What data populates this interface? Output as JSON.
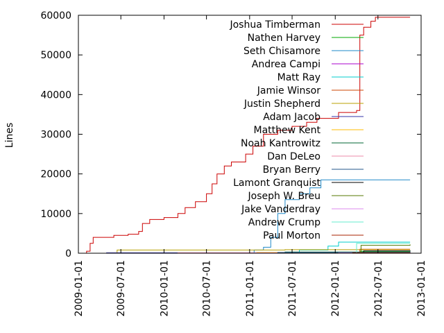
{
  "chart_data": {
    "type": "line",
    "title": "",
    "xlabel": "",
    "ylabel": "Lines",
    "xlim": [
      "2009-01-01",
      "2013-01-01"
    ],
    "ylim": [
      0,
      60000
    ],
    "x_ticks": [
      "2009-01-01",
      "2009-07-01",
      "2010-01-01",
      "2010-07-01",
      "2011-01-01",
      "2011-07-01",
      "2012-01-01",
      "2012-07-01",
      "2013-01-01"
    ],
    "y_ticks": [
      0,
      10000,
      20000,
      30000,
      40000,
      50000,
      60000
    ],
    "legend": "top-right",
    "series": [
      {
        "name": "Joshua Timberman",
        "color": "#cc0000",
        "step": true,
        "points": [
          [
            "2009-01-15",
            0
          ],
          [
            "2009-02-05",
            500
          ],
          [
            "2009-02-20",
            2500
          ],
          [
            "2009-03-05",
            4000
          ],
          [
            "2009-06-01",
            4500
          ],
          [
            "2009-08-01",
            4800
          ],
          [
            "2009-09-15",
            5500
          ],
          [
            "2009-10-01",
            7500
          ],
          [
            "2009-11-01",
            8500
          ],
          [
            "2010-01-01",
            9000
          ],
          [
            "2010-03-01",
            10000
          ],
          [
            "2010-04-01",
            11500
          ],
          [
            "2010-05-15",
            13000
          ],
          [
            "2010-07-01",
            15000
          ],
          [
            "2010-07-25",
            17500
          ],
          [
            "2010-08-15",
            20000
          ],
          [
            "2010-09-15",
            22000
          ],
          [
            "2010-10-15",
            23000
          ],
          [
            "2010-12-15",
            25000
          ],
          [
            "2011-01-15",
            27000
          ],
          [
            "2011-03-01",
            30000
          ],
          [
            "2011-05-01",
            31000
          ],
          [
            "2011-07-01",
            32000
          ],
          [
            "2011-09-01",
            33000
          ],
          [
            "2011-10-15",
            34000
          ],
          [
            "2012-01-15",
            35500
          ],
          [
            "2012-04-01",
            36000
          ],
          [
            "2012-04-15",
            55000
          ],
          [
            "2012-05-01",
            57000
          ],
          [
            "2012-06-01",
            58500
          ],
          [
            "2012-06-20",
            59500
          ],
          [
            "2012-11-15",
            59500
          ]
        ]
      },
      {
        "name": "Nathen Harvey",
        "color": "#00aa00",
        "step": true,
        "points": [
          [
            "2012-04-01",
            0
          ],
          [
            "2012-04-15",
            500
          ],
          [
            "2012-11-15",
            600
          ]
        ]
      },
      {
        "name": "Seth Chisamore",
        "color": "#1e88c8",
        "step": true,
        "points": [
          [
            "2011-01-01",
            0
          ],
          [
            "2011-01-20",
            800
          ],
          [
            "2011-03-01",
            1500
          ],
          [
            "2011-04-01",
            4000
          ],
          [
            "2011-05-01",
            10000
          ],
          [
            "2011-06-01",
            13500
          ],
          [
            "2011-08-01",
            15000
          ],
          [
            "2011-09-15",
            16500
          ],
          [
            "2011-11-01",
            18500
          ],
          [
            "2012-05-01",
            18500
          ],
          [
            "2012-11-15",
            18500
          ]
        ]
      },
      {
        "name": "Andrea Campi",
        "color": "#aa00cc",
        "step": true,
        "points": [
          [
            "2012-02-01",
            0
          ],
          [
            "2012-02-15",
            200
          ],
          [
            "2012-11-15",
            300
          ]
        ]
      },
      {
        "name": "Matt Ray",
        "color": "#00cccc",
        "step": true,
        "points": [
          [
            "2011-06-01",
            0
          ],
          [
            "2011-08-01",
            800
          ],
          [
            "2011-12-01",
            1800
          ],
          [
            "2012-01-15",
            2800
          ],
          [
            "2012-11-15",
            2800
          ]
        ]
      },
      {
        "name": "Jamie Winsor",
        "color": "#cc4400",
        "step": true,
        "points": [
          [
            "2012-04-01",
            0
          ],
          [
            "2012-04-15",
            1000
          ],
          [
            "2012-11-15",
            1000
          ]
        ]
      },
      {
        "name": "Justin Shepherd",
        "color": "#b8a000",
        "step": true,
        "points": [
          [
            "2009-06-01",
            0
          ],
          [
            "2009-06-15",
            800
          ],
          [
            "2011-06-01",
            900
          ],
          [
            "2012-11-15",
            900
          ]
        ]
      },
      {
        "name": "Adam Jacob",
        "color": "#3333aa",
        "step": true,
        "points": [
          [
            "2009-03-01",
            0
          ],
          [
            "2009-05-01",
            100
          ],
          [
            "2012-11-15",
            400
          ]
        ]
      },
      {
        "name": "Matthew Kent",
        "color": "#ffbb00",
        "step": true,
        "points": [
          [
            "2011-01-01",
            0
          ],
          [
            "2011-02-01",
            200
          ],
          [
            "2012-11-15",
            200
          ]
        ]
      },
      {
        "name": "Noah Kantrowitz",
        "color": "#006633",
        "step": true,
        "points": [
          [
            "2011-05-01",
            0
          ],
          [
            "2011-06-01",
            300
          ],
          [
            "2012-11-15",
            300
          ]
        ]
      },
      {
        "name": "Dan DeLeo",
        "color": "#ee88aa",
        "step": true,
        "points": [
          [
            "2010-02-01",
            0
          ],
          [
            "2010-03-01",
            100
          ],
          [
            "2012-11-15",
            200
          ]
        ]
      },
      {
        "name": "Bryan Berry",
        "color": "#225588",
        "step": true,
        "points": [
          [
            "2011-04-01",
            0
          ],
          [
            "2011-05-01",
            200
          ],
          [
            "2012-11-15",
            200
          ]
        ]
      },
      {
        "name": "Lamont Granquist",
        "color": "#000000",
        "step": true,
        "points": [
          [
            "2012-04-01",
            0
          ],
          [
            "2012-05-01",
            600
          ],
          [
            "2012-11-15",
            700
          ]
        ]
      },
      {
        "name": "Joseph W. Breu",
        "color": "#557700",
        "step": true,
        "points": [
          [
            "2012-04-01",
            0
          ],
          [
            "2012-04-20",
            2000
          ],
          [
            "2012-11-15",
            2200
          ]
        ]
      },
      {
        "name": "Jake Vanderdray",
        "color": "#dd88ee",
        "step": true,
        "points": [
          [
            "2012-01-01",
            0
          ],
          [
            "2012-01-15",
            100
          ],
          [
            "2012-11-15",
            150
          ]
        ]
      },
      {
        "name": "Andrew Crump",
        "color": "#66eecc",
        "step": true,
        "points": [
          [
            "2012-03-01",
            0
          ],
          [
            "2012-04-01",
            2500
          ],
          [
            "2012-11-15",
            2500
          ]
        ]
      },
      {
        "name": "Paul Morton",
        "color": "#aa2200",
        "step": true,
        "points": [
          [
            "2012-03-01",
            0
          ],
          [
            "2012-03-15",
            100
          ],
          [
            "2012-11-15",
            150
          ]
        ]
      }
    ]
  }
}
